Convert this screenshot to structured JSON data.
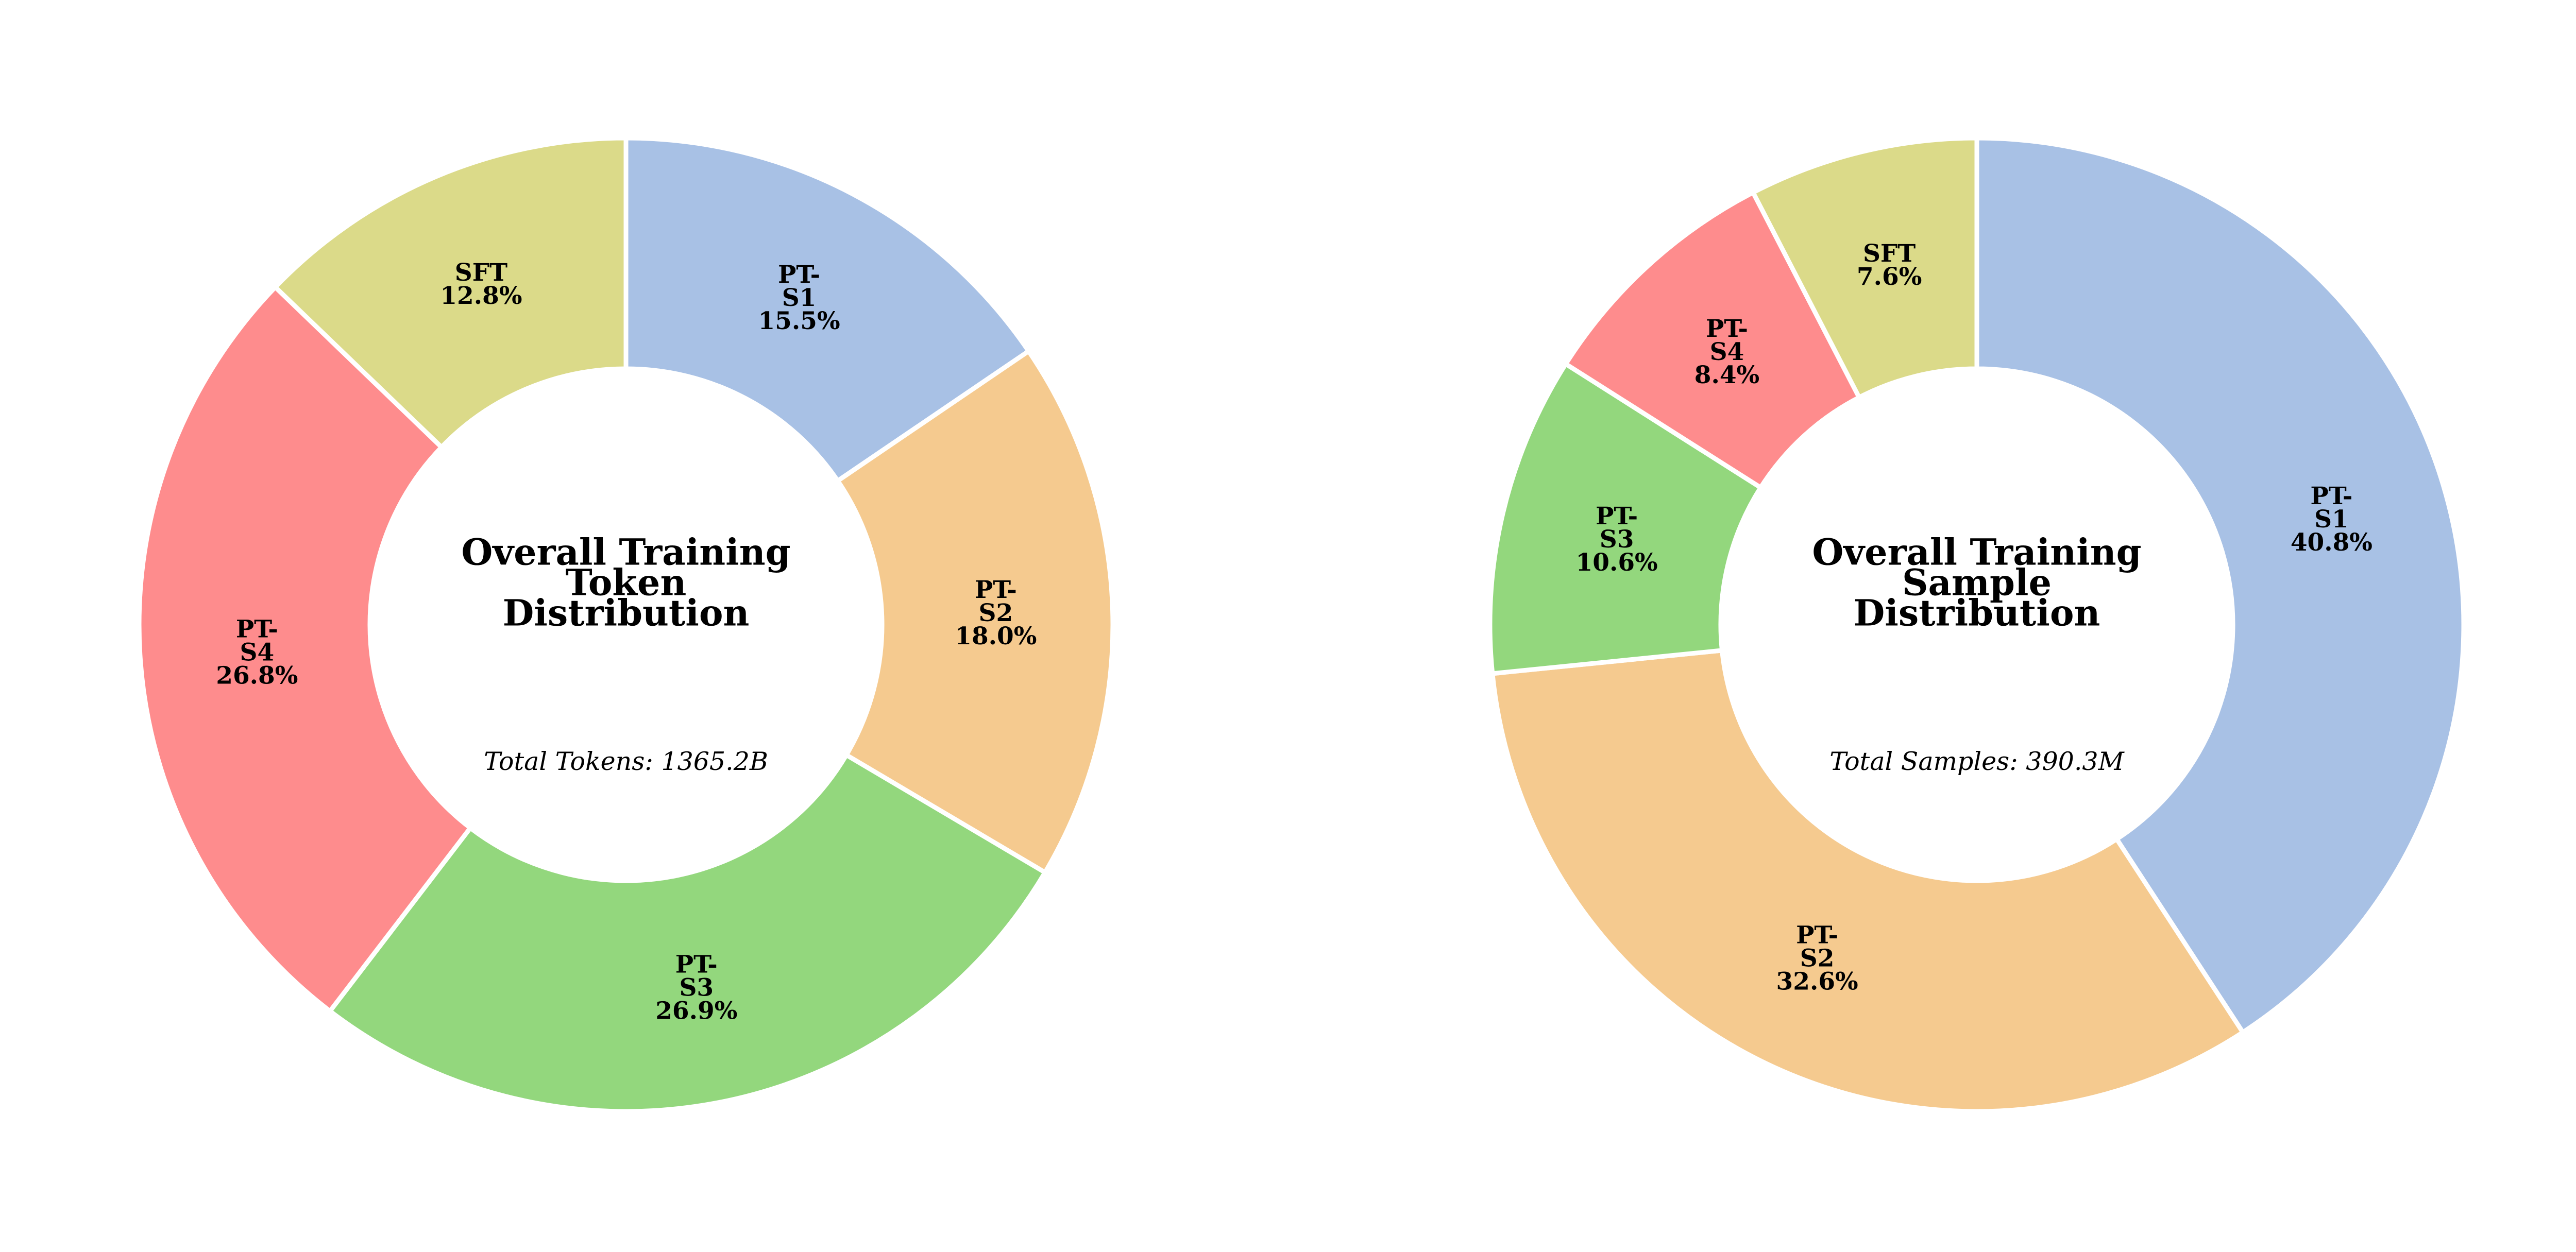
{
  "chart_data": [
    {
      "type": "pie",
      "variant": "donut",
      "title_lines": [
        "Overall Training",
        "Token",
        "Distribution"
      ],
      "total_text": "Total Tokens: 1365.2B",
      "start": "top",
      "direction": "clockwise",
      "slices": [
        {
          "name": "PT-S1",
          "label_lines": [
            "PT-",
            "S1",
            "15.5%"
          ],
          "value": 15.5,
          "color": "#a8c1e5"
        },
        {
          "name": "PT-S2",
          "label_lines": [
            "PT-",
            "S2",
            "18.0%"
          ],
          "value": 18.0,
          "color": "#f5ca8f"
        },
        {
          "name": "PT-S3",
          "label_lines": [
            "PT-",
            "S3",
            "26.9%"
          ],
          "value": 26.9,
          "color": "#93d77d"
        },
        {
          "name": "PT-S4",
          "label_lines": [
            "PT-",
            "S4",
            "26.8%"
          ],
          "value": 26.8,
          "color": "#fe8c8d"
        },
        {
          "name": "SFT",
          "label_lines": [
            "SFT",
            "12.8%"
          ],
          "value": 12.8,
          "color": "#dbda89"
        }
      ]
    },
    {
      "type": "pie",
      "variant": "donut",
      "title_lines": [
        "Overall Training",
        "Sample",
        "Distribution"
      ],
      "total_text": "Total Samples: 390.3M",
      "start": "top",
      "direction": "clockwise",
      "slices": [
        {
          "name": "PT-S1",
          "label_lines": [
            "PT-",
            "S1",
            "40.8%"
          ],
          "value": 40.8,
          "color": "#a8c1e5"
        },
        {
          "name": "PT-S2",
          "label_lines": [
            "PT-",
            "S2",
            "32.6%"
          ],
          "value": 32.6,
          "color": "#f5ca8f"
        },
        {
          "name": "PT-S3",
          "label_lines": [
            "PT-",
            "S3",
            "10.6%"
          ],
          "value": 10.6,
          "color": "#93d77d"
        },
        {
          "name": "PT-S4",
          "label_lines": [
            "PT-",
            "S4",
            "8.4%"
          ],
          "value": 8.4,
          "color": "#fe8c8d"
        },
        {
          "name": "SFT",
          "label_lines": [
            "SFT",
            "7.6%"
          ],
          "value": 7.6,
          "color": "#dbda89"
        }
      ]
    }
  ]
}
